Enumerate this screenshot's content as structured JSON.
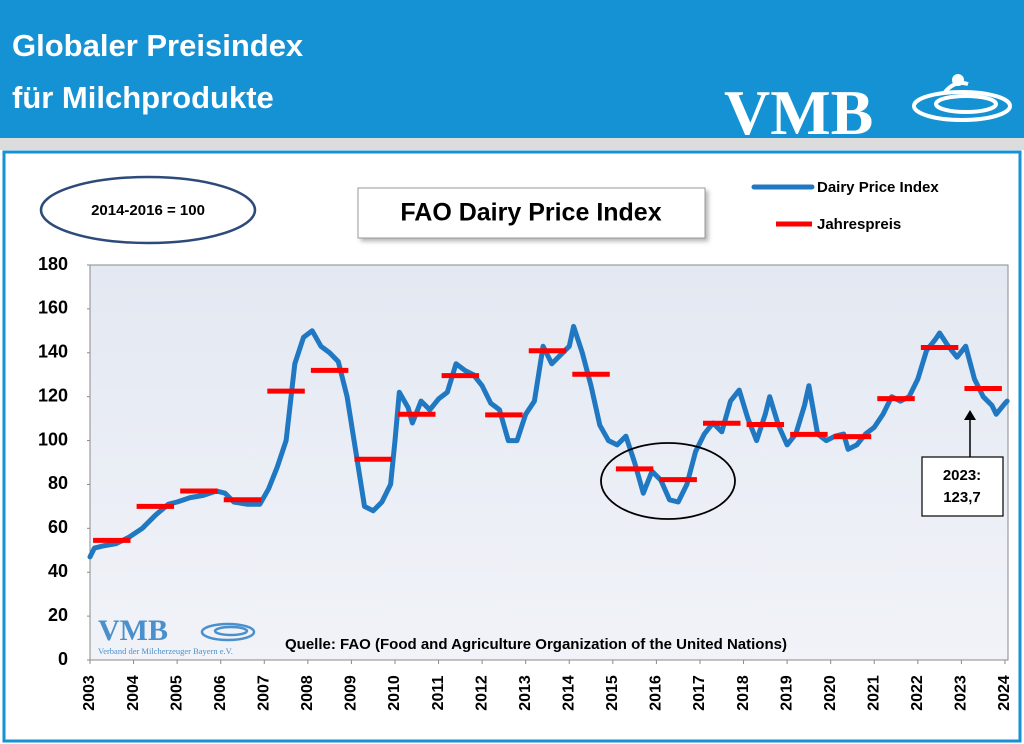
{
  "header": {
    "title_lines": [
      "Globaler Preisindex",
      "für Milchprodukte"
    ],
    "logo": "VMB"
  },
  "chart_data": {
    "type": "line",
    "title": "FAO Dairy Price Index",
    "base_note": "2014-2016 = 100",
    "source": "Quelle: FAO (Food and Agriculture Organization of the United Nations)",
    "logo": {
      "text": "VMB",
      "subtitle": "Verband der Milcherzeuger Bayern e.V."
    },
    "annotation": [
      "2023:",
      "123,7"
    ],
    "xlim": [
      2003,
      2024.07
    ],
    "xticks": [
      2003,
      2004,
      2005,
      2006,
      2007,
      2008,
      2009,
      2010,
      2011,
      2012,
      2013,
      2014,
      2015,
      2016,
      2017,
      2018,
      2019,
      2020,
      2021,
      2022,
      2023,
      2024
    ],
    "ylim": [
      0,
      180
    ],
    "yticks": [
      0,
      20,
      40,
      60,
      80,
      100,
      120,
      140,
      160,
      180
    ],
    "grid": false,
    "legend": "top-right",
    "series": [
      {
        "name": "Dairy Price Index",
        "color": "#1f78c1",
        "style": "line",
        "x": [
          2003.0,
          2003.1,
          2003.3,
          2003.6,
          2003.9,
          2004.2,
          2004.5,
          2004.8,
          2005.0,
          2005.3,
          2005.6,
          2005.9,
          2006.1,
          2006.3,
          2006.6,
          2006.9,
          2007.1,
          2007.3,
          2007.5,
          2007.7,
          2007.9,
          2008.1,
          2008.3,
          2008.5,
          2008.7,
          2008.9,
          2009.1,
          2009.3,
          2009.5,
          2009.7,
          2009.9,
          2010.0,
          2010.1,
          2010.3,
          2010.4,
          2010.6,
          2010.8,
          2011.0,
          2011.2,
          2011.4,
          2011.6,
          2011.8,
          2012.0,
          2012.2,
          2012.4,
          2012.6,
          2012.8,
          2013.0,
          2013.2,
          2013.4,
          2013.6,
          2013.8,
          2014.0,
          2014.1,
          2014.3,
          2014.5,
          2014.7,
          2014.9,
          2015.1,
          2015.3,
          2015.5,
          2015.7,
          2015.9,
          2016.1,
          2016.3,
          2016.5,
          2016.7,
          2016.9,
          2017.1,
          2017.3,
          2017.5,
          2017.7,
          2017.9,
          2018.1,
          2018.3,
          2018.5,
          2018.6,
          2018.8,
          2019.0,
          2019.2,
          2019.4,
          2019.5,
          2019.7,
          2019.9,
          2020.1,
          2020.3,
          2020.4,
          2020.6,
          2020.8,
          2021.0,
          2021.2,
          2021.4,
          2021.6,
          2021.8,
          2022.0,
          2022.2,
          2022.4,
          2022.5,
          2022.7,
          2022.9,
          2023.1,
          2023.3,
          2023.5,
          2023.7,
          2023.8,
          2024.0,
          2024.05
        ],
        "values": [
          47,
          51,
          52,
          53,
          56,
          60,
          66,
          71,
          72,
          74,
          75,
          77,
          76,
          72,
          71,
          71,
          78,
          88,
          100,
          135,
          147,
          150,
          143,
          140,
          136,
          120,
          95,
          70,
          68,
          72,
          80,
          100,
          122,
          115,
          108,
          118,
          114,
          119,
          122,
          135,
          132,
          130,
          125,
          117,
          114,
          100,
          100,
          112,
          118,
          143,
          135,
          139,
          143,
          152,
          140,
          125,
          107,
          100,
          98,
          102,
          90,
          76,
          86,
          82,
          73,
          72,
          80,
          95,
          103,
          108,
          104,
          118,
          123,
          110,
          100,
          112,
          120,
          107,
          98,
          103,
          116,
          125,
          103,
          100,
          102,
          103,
          96,
          98,
          103,
          106,
          112,
          120,
          118,
          120,
          128,
          141,
          146,
          149,
          143,
          138,
          143,
          128,
          120,
          116,
          112,
          117,
          118
        ]
      },
      {
        "name": "Jahrespreis",
        "color": "#ff0000",
        "style": "annual",
        "x": [
          2003,
          2004,
          2005,
          2006,
          2007,
          2008,
          2009,
          2010,
          2011,
          2012,
          2013,
          2014,
          2015,
          2016,
          2017,
          2018,
          2019,
          2020,
          2021,
          2022,
          2023
        ],
        "values": [
          54.5,
          70,
          77,
          73,
          122.5,
          132,
          91.5,
          112,
          129.6,
          111.7,
          140.9,
          130.2,
          87.1,
          82.2,
          107.9,
          107.3,
          102.8,
          101.8,
          119.1,
          142.4,
          123.7
        ]
      }
    ]
  }
}
